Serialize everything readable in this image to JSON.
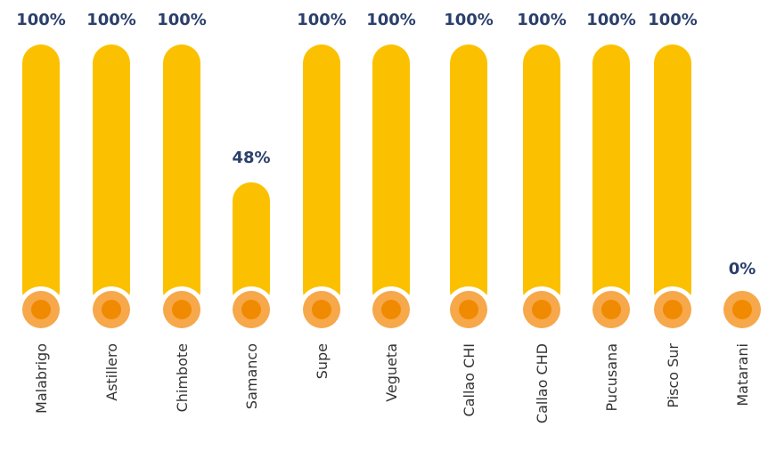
{
  "chart_data": {
    "type": "bar",
    "categories": [
      "Malabrigo",
      "Astillero",
      "Chimbote",
      "Samanco",
      "Supe",
      "Vegueta",
      "Callao CHI",
      "Callao CHD",
      "Pucusana",
      "Pisco Sur",
      "Matarani"
    ],
    "values": [
      100,
      100,
      100,
      48,
      100,
      100,
      100,
      100,
      100,
      100,
      0
    ],
    "value_labels": [
      "100%",
      "100%",
      "100%",
      "48%",
      "100%",
      "100%",
      "100%",
      "100%",
      "100%",
      "100%",
      "0%"
    ],
    "ylim": [
      0,
      100
    ],
    "grid": false,
    "colors": {
      "bar": "#fbc100",
      "knob_outer": "#f6a84a",
      "knob_inner": "#f08a00",
      "value_text": "#2b3f6b"
    }
  }
}
